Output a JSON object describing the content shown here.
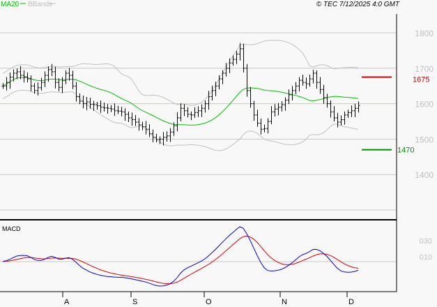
{
  "header": {
    "legend_ma": "MA20",
    "legend_bbands": "BBands",
    "copyright": "© TEC 7/12/2025 4:0 GMT"
  },
  "colors": {
    "ma": "#00c000",
    "bbands": "#c0c0c0",
    "bars": "#000000",
    "macd": "#0000e0",
    "signal": "#e00000",
    "resistance": "#d00000",
    "support": "#009000",
    "grid": "#c8c8c0",
    "axis_text": "#c0c0c0"
  },
  "chart_data": {
    "type": "ohlc",
    "price_ticks": [
      1800,
      1700,
      1600,
      1500,
      1400
    ],
    "price_range": [
      1300,
      1855
    ],
    "months": [
      "A",
      "S",
      "O",
      "N",
      "D"
    ],
    "levels": [
      {
        "label": "1675",
        "value": 1675,
        "kind": "resistance"
      },
      {
        "label": "1470",
        "value": 1470,
        "kind": "support"
      }
    ],
    "macd_label": "MACD",
    "macd_ticks": [
      "030",
      "010"
    ],
    "close": [
      1650,
      1660,
      1675,
      1686,
      1690,
      1680,
      1676,
      1670,
      1650,
      1637,
      1645,
      1660,
      1680,
      1696,
      1690,
      1660,
      1646,
      1665,
      1686,
      1680,
      1650,
      1620,
      1607,
      1600,
      1605,
      1598,
      1597,
      1594,
      1590,
      1588,
      1587,
      1585,
      1580,
      1579,
      1577,
      1570,
      1560,
      1555,
      1548,
      1540,
      1535,
      1528,
      1515,
      1505,
      1499,
      1500,
      1505,
      1509,
      1520,
      1538,
      1560,
      1587,
      1580,
      1570,
      1568,
      1575,
      1580,
      1587,
      1600,
      1620,
      1637,
      1650,
      1670,
      1686,
      1700,
      1715,
      1725,
      1740,
      1755,
      1700,
      1637,
      1600,
      1568,
      1545,
      1528,
      1530,
      1550,
      1577,
      1585,
      1590,
      1597,
      1610,
      1625,
      1637,
      1650,
      1666,
      1660,
      1656,
      1670,
      1686,
      1660,
      1640,
      1617,
      1600,
      1577,
      1560,
      1548,
      1555,
      1568,
      1575,
      1580,
      1587,
      1595
    ]
  }
}
